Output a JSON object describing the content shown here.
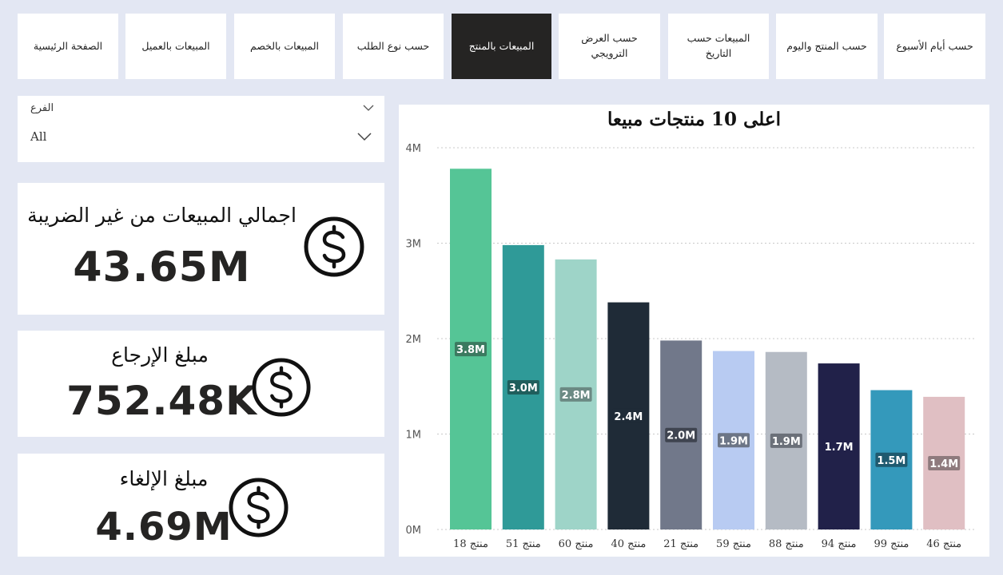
{
  "nav": {
    "tabs": [
      {
        "label": "حسب أيام الأسبوع",
        "active": false
      },
      {
        "label": "حسب المنتج واليوم",
        "active": false
      },
      {
        "label": "المبيعات حسب التاريخ",
        "active": false
      },
      {
        "label": "حسب العرض الترويجي",
        "active": false
      },
      {
        "label": "المبيعات بالمنتج",
        "active": true
      },
      {
        "label": "حسب نوع الطلب",
        "active": false
      },
      {
        "label": "المبيعات بالخصم",
        "active": false
      },
      {
        "label": "المبيعات بالعميل",
        "active": false
      },
      {
        "label": "الصفحة الرئيسية",
        "active": false
      }
    ]
  },
  "slicer": {
    "title": "الفرع",
    "value": "All"
  },
  "kpis": [
    {
      "label": "اجمالي المبيعات من غير الضريبة",
      "value": "43.65M",
      "icon": "dollar-icon"
    },
    {
      "label": "مبلغ الإرجاع",
      "value": "752.48K",
      "icon": "dollar-icon"
    },
    {
      "label": "مبلغ الإلغاء",
      "value": "4.69M",
      "icon": "dollar-icon"
    }
  ],
  "chart_data": {
    "type": "bar",
    "title": "اعلى 10 منتجات مبيعا",
    "categories": [
      "منتج 18",
      "منتج 51",
      "منتج 60",
      "منتج 40",
      "منتج 21",
      "منتج 59",
      "منتج 88",
      "منتج 94",
      "منتج 99",
      "منتج 46"
    ],
    "values": [
      3.78,
      2.98,
      2.83,
      2.38,
      1.98,
      1.87,
      1.86,
      1.74,
      1.46,
      1.39
    ],
    "data_labels": [
      "3.8M",
      "3.0M",
      "2.8M",
      "2.4M",
      "2.0M",
      "1.9M",
      "1.9M",
      "1.7M",
      "1.5M",
      "1.4M"
    ],
    "colors": [
      "#55c596",
      "#2f9a98",
      "#9ed4c8",
      "#1f2b37",
      "#71788a",
      "#b8cbf2",
      "#b5bbc4",
      "#212149",
      "#3499bb",
      "#e0bfc3"
    ],
    "label_boxes": [
      "#3b7a60",
      "#1f5e5c",
      "#6b8a84",
      "#1f2b37",
      "#3f4450",
      "#6c7586",
      "#6b7079",
      "#212149",
      "#1f5a6f",
      "#8e7a7d"
    ],
    "yticks": [
      "0M",
      "1M",
      "2M",
      "3M",
      "4M"
    ],
    "ylim": [
      0,
      4
    ],
    "grid": true,
    "xlabel": "",
    "ylabel": ""
  }
}
